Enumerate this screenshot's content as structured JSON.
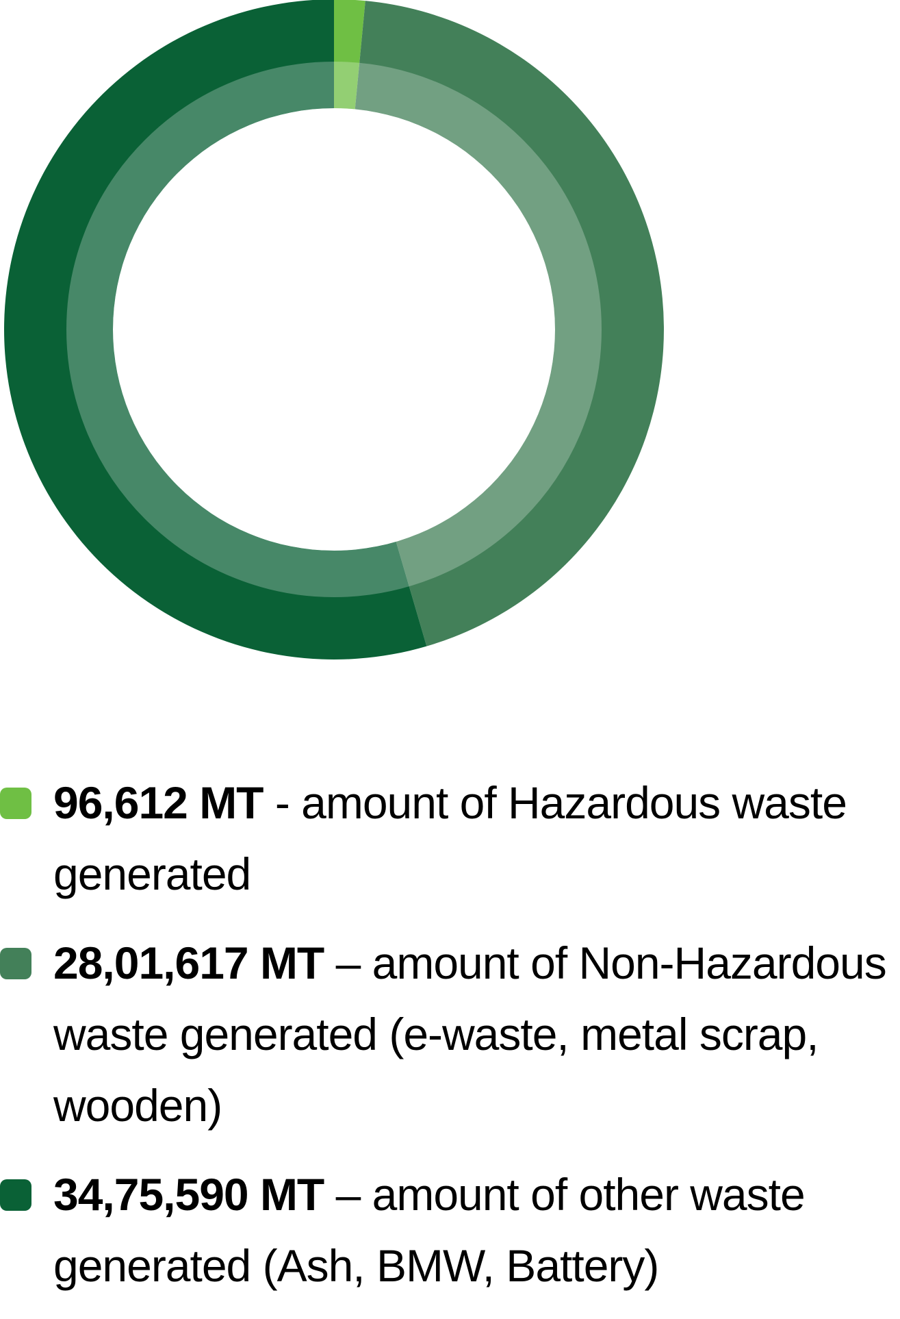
{
  "chart_data": {
    "type": "pie",
    "variant": "donut",
    "title": "",
    "unit": "MT",
    "slices": [
      {
        "label": "Hazardous waste",
        "value": 96612,
        "color": "#6fbf44"
      },
      {
        "label": "Non-Hazardous waste",
        "value": 2801617,
        "color": "#438059"
      },
      {
        "label": "Other waste",
        "value": 3475590,
        "color": "#0a6136"
      }
    ],
    "legend_position": "bottom"
  },
  "legend": [
    {
      "value": "96,612 MT",
      "text": " - amount of Hazardous waste generated",
      "color": "#6fbf44"
    },
    {
      "value": "28,01,617 MT",
      "text": " – amount of Non-Hazardous waste generated (e-waste, metal scrap, wooden)",
      "color": "#438059"
    },
    {
      "value": "34,75,590 MT",
      "text": " – amount of other waste generated (Ash, BMW, Battery)",
      "color": "#0a6136"
    }
  ]
}
